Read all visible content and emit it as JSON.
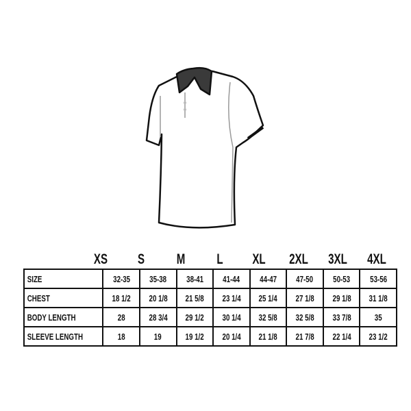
{
  "sizes": [
    "XS",
    "S",
    "M",
    "L",
    "XL",
    "2XL",
    "3XL",
    "4XL"
  ],
  "rows": [
    {
      "label": "SIZE",
      "values": [
        "32-35",
        "35-38",
        "38-41",
        "41-44",
        "44-47",
        "47-50",
        "50-53",
        "53-56"
      ]
    },
    {
      "label": "CHEST",
      "values": [
        "18 1/2",
        "20 1/8",
        "21 5/8",
        "23 1/4",
        "25 1/4",
        "27 1/8",
        "29 1/8",
        "31 1/8"
      ]
    },
    {
      "label": "BODY LENGTH",
      "values": [
        "28",
        "28 3/4",
        "29 1/2",
        "30 1/4",
        "32 5/8",
        "32 5/8",
        "33 7/8",
        "35"
      ]
    },
    {
      "label": "SLEEVE LENGTH",
      "values": [
        "18",
        "19",
        "19 1/2",
        "20 1/4",
        "21 1/8",
        "21 7/8",
        "22 1/4",
        "23 1/2"
      ]
    }
  ],
  "colors": {
    "collar": "#3a3a3a",
    "outline": "#111111"
  }
}
